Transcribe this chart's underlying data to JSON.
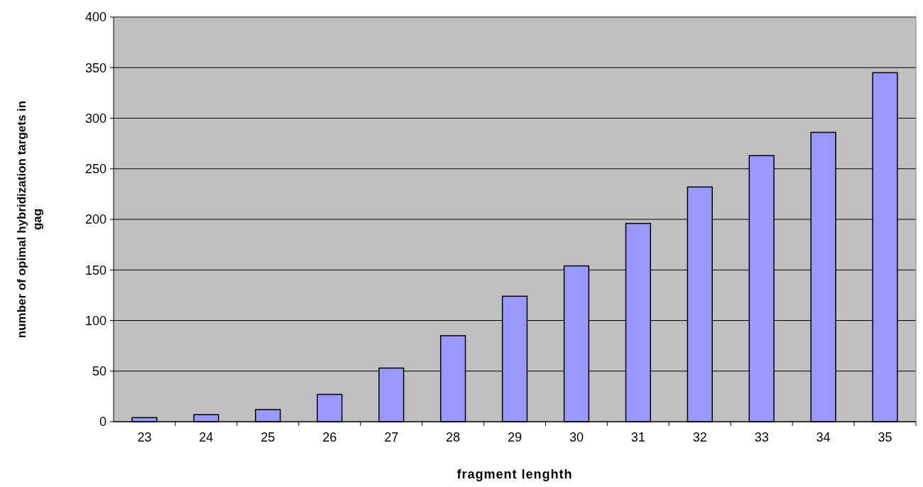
{
  "chart_data": {
    "type": "bar",
    "xlabel": "fragment lenghth",
    "ylabel": "number of opimal hybridization targets in gag",
    "categories": [
      "23",
      "24",
      "25",
      "26",
      "27",
      "28",
      "29",
      "30",
      "31",
      "32",
      "33",
      "34",
      "35"
    ],
    "values": [
      4,
      7,
      12,
      27,
      53,
      85,
      124,
      154,
      196,
      232,
      263,
      286,
      345
    ],
    "color": "#9999ff",
    "ylim": [
      0,
      400
    ],
    "yticks": [
      0,
      50,
      100,
      150,
      200,
      250,
      300,
      350,
      400
    ],
    "grid": "y"
  }
}
